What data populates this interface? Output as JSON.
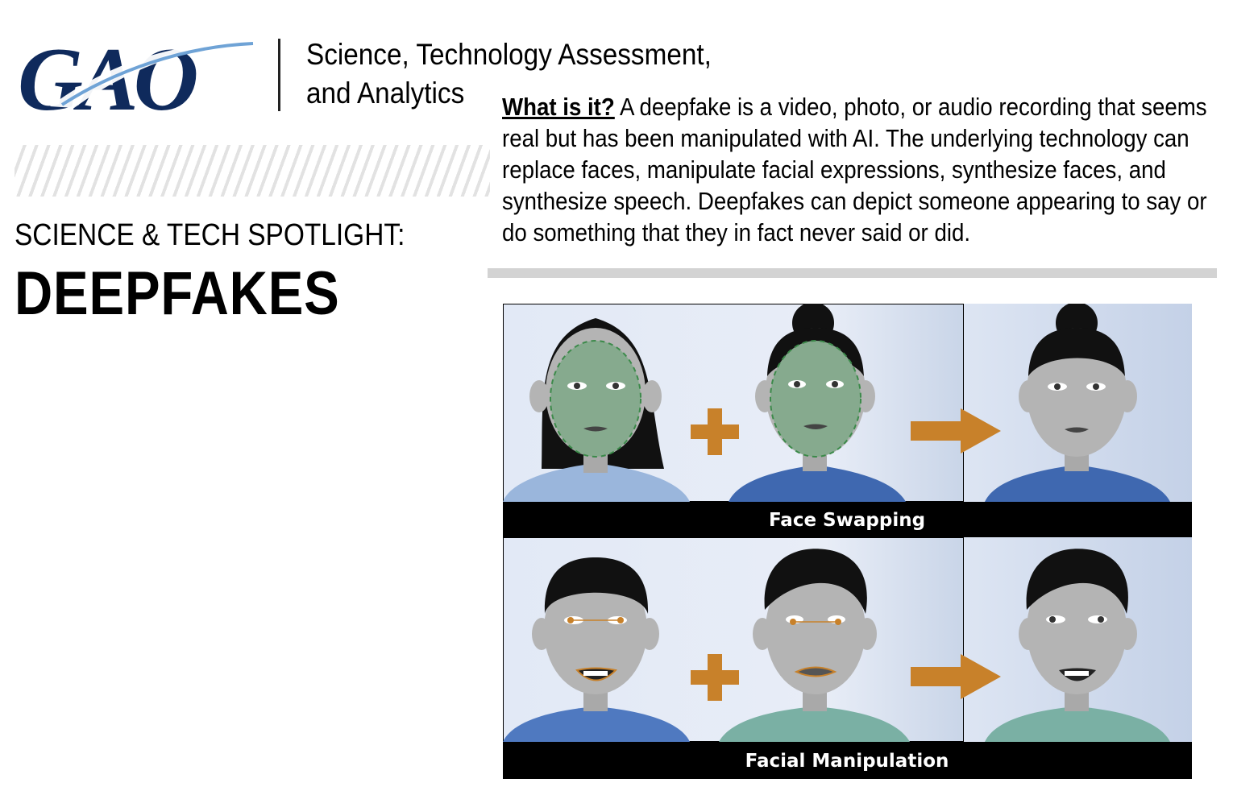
{
  "header": {
    "logo_text": "GAO",
    "subtitle_line1": "Science, Technology Assessment,",
    "subtitle_line2": "and Analytics"
  },
  "spotlight_label": "SCIENCE & TECH SPOTLIGHT:",
  "title": "DEEPFAKES",
  "description": {
    "lead": "What is it?",
    "body": " A deepfake is a video, photo, or audio recording that seems real but has been manipulated with AI. The underlying technology can replace faces, manipulate facial expressions, synthesize faces, and synthesize speech. Deepfakes can depict someone appearing to say or do something that they in fact never said or did."
  },
  "illustration": {
    "panels": [
      {
        "caption": "Face Swapping"
      },
      {
        "caption": "Facial Manipulation"
      }
    ]
  },
  "colors": {
    "gao_navy": "#0f2a5c",
    "arrow_orange": "#c8812a",
    "panel_bg": "#e3eaf5",
    "shirt_light_blue": "#9ab6dc",
    "shirt_blue": "#3f68b0",
    "shirt_teal": "#7ab0a4",
    "skin_gray": "#b4b4b4",
    "face_overlay_green": "#86aa8e"
  }
}
